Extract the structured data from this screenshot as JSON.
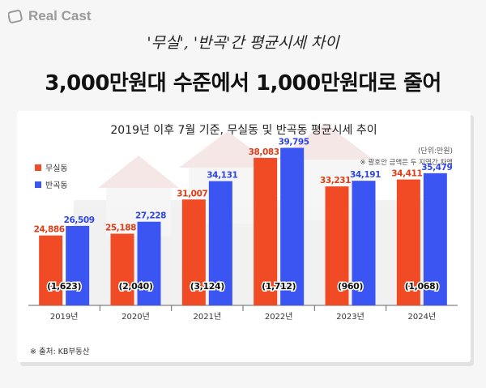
{
  "brand": {
    "name": "Real Cast"
  },
  "header": {
    "subtitle": "'무실', '반곡'간 평균시세 차이",
    "title": "3,000만원대 수준에서 1,000만원대로 줄어"
  },
  "colors": {
    "muksil": "#f04b24",
    "bangok": "#3b55f2"
  },
  "chart_data": {
    "type": "bar",
    "title": "2019년 이후 7월 기준, 무실동 및 반곡동 평균시세 추이",
    "unit_label": "(단위:만원)",
    "note": "※ 괄호안 금액은 두 지역간 차액",
    "categories": [
      "2019년",
      "2020년",
      "2021년",
      "2022년",
      "2023년",
      "2024년"
    ],
    "series": [
      {
        "name": "무실동",
        "values": [
          24886,
          25188,
          31007,
          38083,
          33231,
          34411
        ],
        "labels": [
          "24,886",
          "25,188",
          "31,007",
          "38,083",
          "33,231",
          "34,411"
        ]
      },
      {
        "name": "반곡동",
        "values": [
          26509,
          27228,
          34131,
          39795,
          34191,
          35479
        ],
        "labels": [
          "26,509",
          "27,228",
          "34,131",
          "39,795",
          "34,191",
          "35,479"
        ]
      }
    ],
    "differences": [
      "(1,623)",
      "(2,040)",
      "(3,124)",
      "(1,712)",
      "(960)",
      "(1,068)"
    ],
    "ylim": [
      13000,
      40000
    ],
    "grid": false,
    "legend_position": "top-left"
  },
  "footer": {
    "source": "※ 출처: KB부동산"
  }
}
